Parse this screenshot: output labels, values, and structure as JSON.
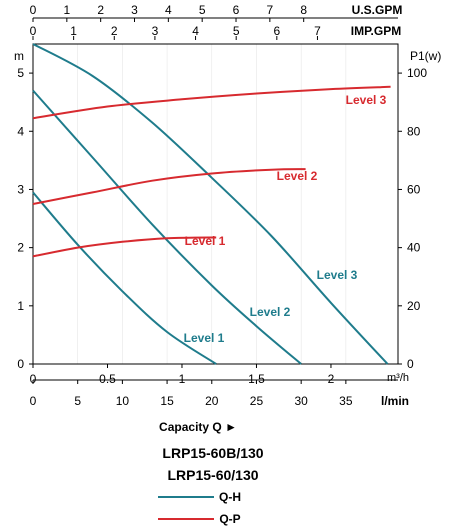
{
  "chart_data": {
    "type": "line",
    "top_axis_1": {
      "label": "U.S.GPM",
      "ticks": [
        "0",
        "1",
        "2",
        "3",
        "4",
        "5",
        "6",
        "7",
        "8"
      ]
    },
    "top_axis_2": {
      "label": "IMP.GPM",
      "ticks": [
        "0",
        "1",
        "2",
        "3",
        "4",
        "5",
        "6",
        "7"
      ]
    },
    "left_axis": {
      "label": "m",
      "ticks": [
        "0",
        "1",
        "2",
        "3",
        "4",
        "5"
      ],
      "ylim": [
        0,
        5.5
      ]
    },
    "right_axis": {
      "label": "P1(w)",
      "ticks": [
        "0",
        "20",
        "40",
        "60",
        "80",
        "100"
      ],
      "ylim": [
        0,
        110
      ]
    },
    "bottom_axis_1": {
      "label": "m³/h",
      "ticks": [
        "0",
        "0.5",
        "1",
        "1.5",
        "2"
      ],
      "xlim": [
        0,
        2.45
      ]
    },
    "bottom_axis_2": {
      "label": "l/min",
      "ticks": [
        "0",
        "5",
        "10",
        "15",
        "20",
        "25",
        "30",
        "35"
      ]
    },
    "xlabel": "Capacity Q ►",
    "models": [
      "LRP15-60B/130",
      "LRP15-60/130"
    ],
    "legend": [
      {
        "label": "Q-H",
        "color": "#1f7c8c"
      },
      {
        "label": "Q-P",
        "color": "#d72a2f"
      }
    ],
    "series_head": [
      {
        "name": "Level 1",
        "color": "#1f7c8c",
        "x": [
          0,
          0.3,
          0.6,
          0.9,
          1.23
        ],
        "y": [
          2.95,
          2.05,
          1.25,
          0.55,
          0
        ]
      },
      {
        "name": "Level 2",
        "color": "#1f7c8c",
        "x": [
          0,
          0.4,
          0.8,
          1.2,
          1.5,
          1.8
        ],
        "y": [
          4.7,
          3.55,
          2.4,
          1.35,
          0.65,
          0
        ]
      },
      {
        "name": "Level 3",
        "color": "#1f7c8c",
        "x": [
          0,
          0.4,
          0.8,
          1.2,
          1.6,
          2.0,
          2.38
        ],
        "y": [
          5.5,
          4.95,
          4.15,
          3.2,
          2.2,
          1.05,
          0
        ]
      }
    ],
    "series_power": [
      {
        "name": "Level 1",
        "color": "#d72a2f",
        "x": [
          0,
          0.3,
          0.6,
          0.9,
          1.23
        ],
        "y": [
          37,
          40,
          42,
          43.2,
          43.5
        ]
      },
      {
        "name": "Level 2",
        "color": "#d72a2f",
        "x": [
          0,
          0.4,
          0.8,
          1.2,
          1.6,
          1.83
        ],
        "y": [
          55,
          59,
          63,
          65.5,
          66.8,
          67
        ]
      },
      {
        "name": "Level 3",
        "color": "#d72a2f",
        "x": [
          0,
          0.5,
          1.0,
          1.5,
          2.0,
          2.4
        ],
        "y": [
          84.5,
          88.5,
          91,
          93,
          94.5,
          95.3
        ]
      }
    ]
  }
}
